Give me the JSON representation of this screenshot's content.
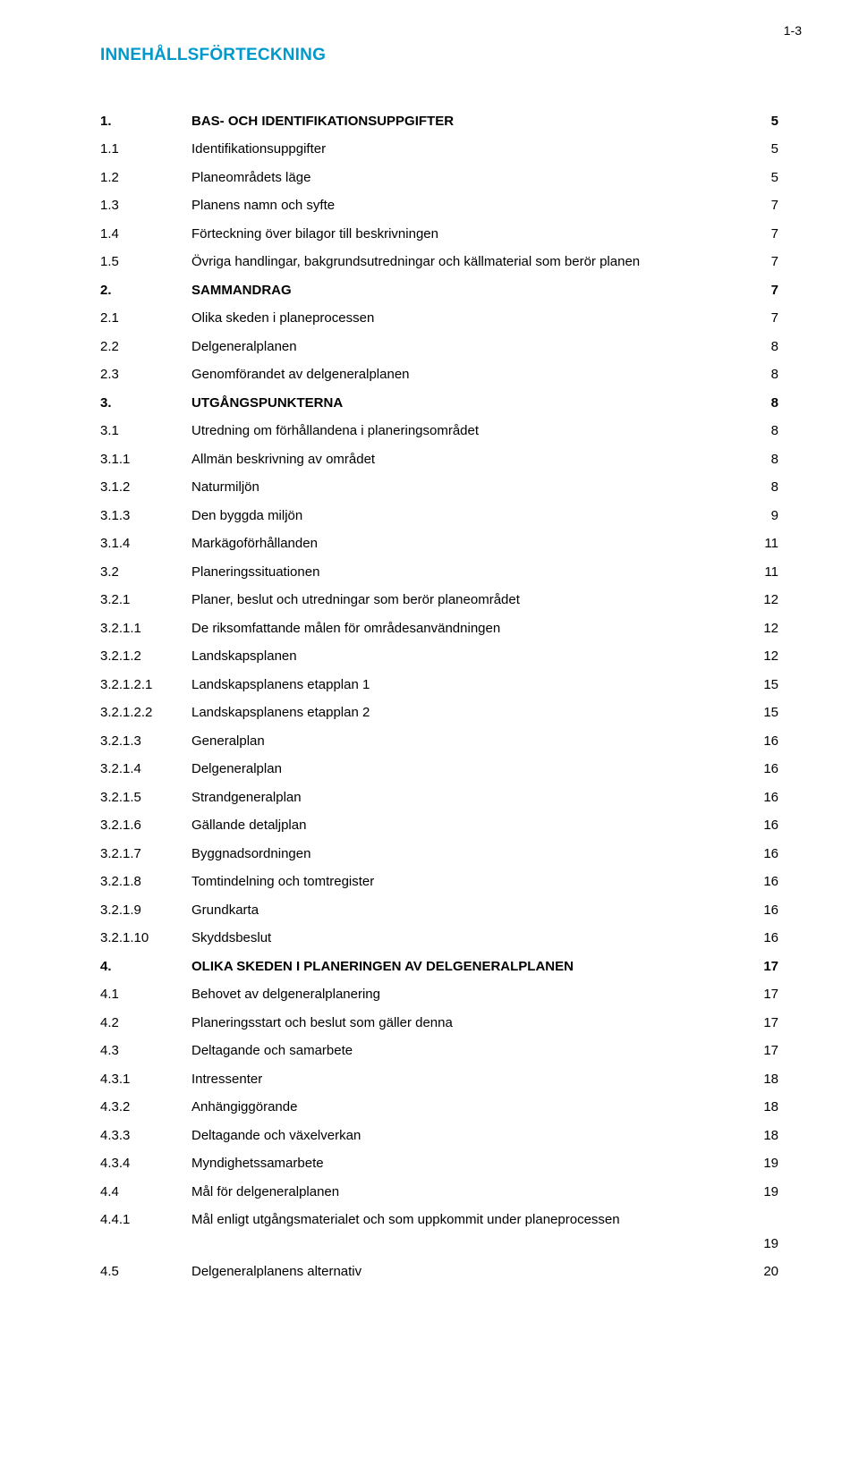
{
  "page_number": "1-3",
  "title": "INNEHÅLLSFÖRTECKNING",
  "entries": [
    {
      "num": "1.",
      "text": "BAS- OCH IDENTIFIKATIONSUPPGIFTER",
      "page": "5",
      "bold": true
    },
    {
      "num": "1.1",
      "text": "Identifikationsuppgifter",
      "page": "5",
      "bold": false
    },
    {
      "num": "1.2",
      "text": "Planeområdets läge",
      "page": "5",
      "bold": false
    },
    {
      "num": "1.3",
      "text": "Planens namn och syfte",
      "page": "7",
      "bold": false
    },
    {
      "num": "1.4",
      "text": "Förteckning över bilagor till beskrivningen",
      "page": "7",
      "bold": false
    },
    {
      "num": "1.5",
      "text": "Övriga handlingar, bakgrundsutredningar och källmaterial som berör planen",
      "page": "7",
      "bold": false
    },
    {
      "num": "2.",
      "text": "SAMMANDRAG",
      "page": "7",
      "bold": true
    },
    {
      "num": "2.1",
      "text": "Olika skeden i planeprocessen",
      "page": "7",
      "bold": false
    },
    {
      "num": "2.2",
      "text": "Delgeneralplanen",
      "page": "8",
      "bold": false
    },
    {
      "num": "2.3",
      "text": "Genomförandet av delgeneralplanen",
      "page": "8",
      "bold": false
    },
    {
      "num": "3.",
      "text": "UTGÅNGSPUNKTERNA",
      "page": "8",
      "bold": true
    },
    {
      "num": "3.1",
      "text": "Utredning om förhållandena i planeringsområdet",
      "page": "8",
      "bold": false
    },
    {
      "num": "3.1.1",
      "text": "Allmän beskrivning av området",
      "page": "8",
      "bold": false
    },
    {
      "num": "3.1.2",
      "text": "Naturmiljön",
      "page": "8",
      "bold": false
    },
    {
      "num": "3.1.3",
      "text": "Den byggda miljön",
      "page": "9",
      "bold": false
    },
    {
      "num": "3.1.4",
      "text": "Markägoförhållanden",
      "page": "11",
      "bold": false
    },
    {
      "num": "3.2",
      "text": "Planeringssituationen",
      "page": "11",
      "bold": false
    },
    {
      "num": "3.2.1",
      "text": "Planer, beslut och utredningar som berör planeområdet",
      "page": "12",
      "bold": false
    },
    {
      "num": "3.2.1.1",
      "text": "De riksomfattande målen för områdesanvändningen",
      "page": "12",
      "bold": false
    },
    {
      "num": "3.2.1.2",
      "text": "Landskapsplanen",
      "page": "12",
      "bold": false
    },
    {
      "num": "3.2.1.2.1",
      "text": "Landskapsplanens etapplan 1",
      "page": "15",
      "bold": false
    },
    {
      "num": "3.2.1.2.2",
      "text": "Landskapsplanens etapplan 2",
      "page": "15",
      "bold": false
    },
    {
      "num": "3.2.1.3",
      "text": "Generalplan",
      "page": "16",
      "bold": false
    },
    {
      "num": "3.2.1.4",
      "text": "Delgeneralplan",
      "page": "16",
      "bold": false
    },
    {
      "num": "3.2.1.5",
      "text": "Strandgeneralplan",
      "page": "16",
      "bold": false
    },
    {
      "num": "3.2.1.6",
      "text": "Gällande detaljplan",
      "page": "16",
      "bold": false
    },
    {
      "num": "3.2.1.7",
      "text": "Byggnadsordningen",
      "page": "16",
      "bold": false
    },
    {
      "num": "3.2.1.8",
      "text": "Tomtindelning och tomtregister",
      "page": "16",
      "bold": false
    },
    {
      "num": "3.2.1.9",
      "text": "Grundkarta",
      "page": "16",
      "bold": false
    },
    {
      "num": "3.2.1.10",
      "text": "Skyddsbeslut",
      "page": "16",
      "bold": false
    },
    {
      "num": "4.",
      "text": "OLIKA SKEDEN I PLANERINGEN AV DELGENERALPLANEN",
      "page": "17",
      "bold": true
    },
    {
      "num": "4.1",
      "text": "Behovet av delgeneralplanering",
      "page": "17",
      "bold": false
    },
    {
      "num": "4.2",
      "text": "Planeringsstart och beslut som gäller denna",
      "page": "17",
      "bold": false
    },
    {
      "num": "4.3",
      "text": "Deltagande och samarbete",
      "page": "17",
      "bold": false
    },
    {
      "num": "4.3.1",
      "text": "Intressenter",
      "page": "18",
      "bold": false
    },
    {
      "num": "4.3.2",
      "text": "Anhängiggörande",
      "page": "18",
      "bold": false
    },
    {
      "num": "4.3.3",
      "text": "Deltagande och växelverkan",
      "page": "18",
      "bold": false
    },
    {
      "num": "4.3.4",
      "text": "Myndighetssamarbete",
      "page": "19",
      "bold": false
    },
    {
      "num": "4.4",
      "text": "Mål för delgeneralplanen",
      "page": "19",
      "bold": false
    },
    {
      "num": "4.4.1",
      "text": "Mål enligt utgångsmaterialet och som uppkommit under planeprocessen",
      "page": "19",
      "bold": false,
      "pageBelow": true
    },
    {
      "num": "4.5",
      "text": "Delgeneralplanens alternativ",
      "page": "20",
      "bold": false
    }
  ]
}
